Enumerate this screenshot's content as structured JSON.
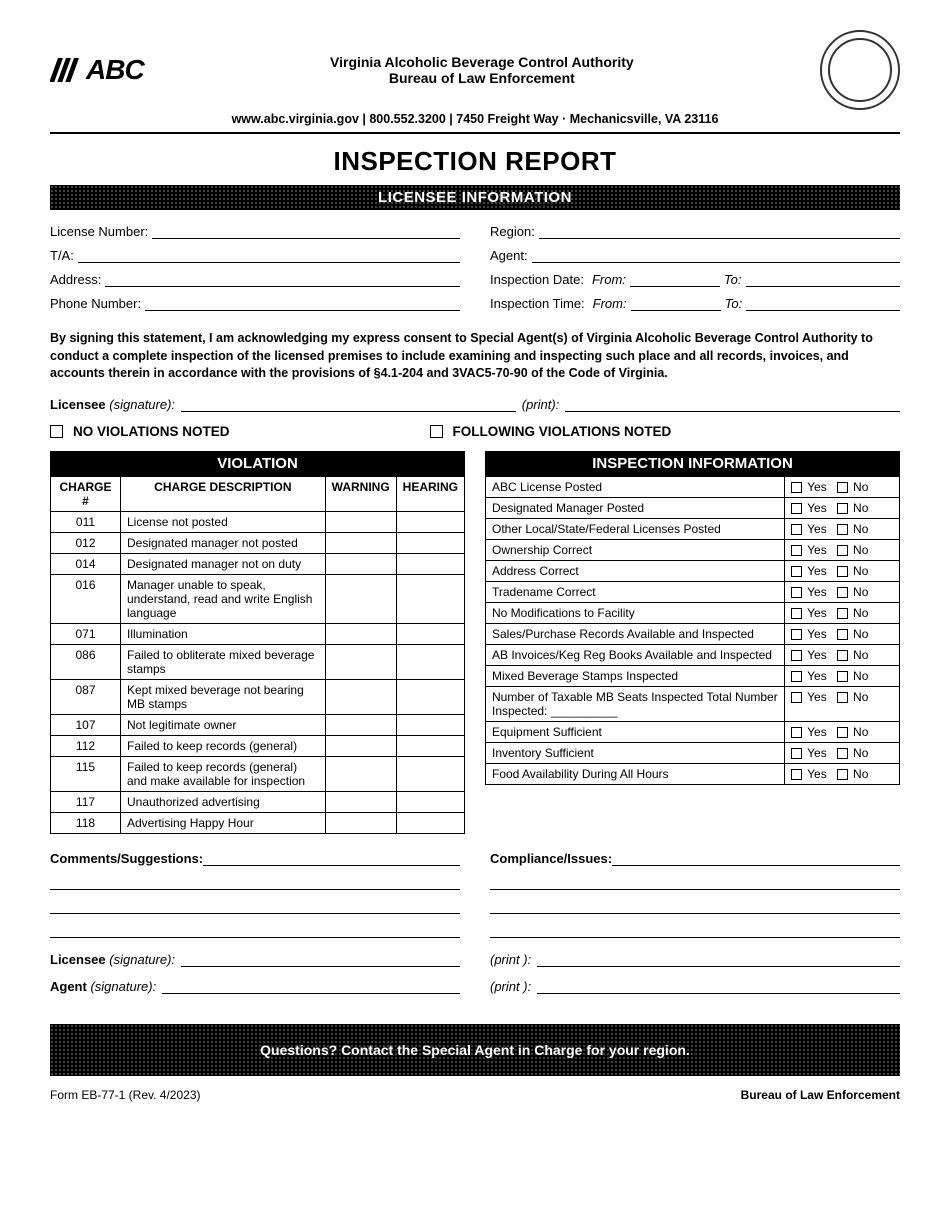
{
  "header": {
    "authority": "Virginia Alcoholic Beverage Control Authority",
    "bureau": "Bureau of Law Enforcement",
    "contact": "www.abc.virginia.gov  |  800.552.3200  |  7450 Freight Way · Mechanicsville, VA 23116",
    "logo_text": "ABC"
  },
  "title": "INSPECTION REPORT",
  "sections": {
    "licensee_info": "LICENSEE INFORMATION",
    "violation": "VIOLATION",
    "inspection_info": "INSPECTION INFORMATION"
  },
  "fields_left": {
    "license_number": "License Number:",
    "ta": "T/A:",
    "address": "Address:",
    "phone": "Phone Number:"
  },
  "fields_right": {
    "region": "Region:",
    "agent": "Agent:",
    "insp_date": "Inspection Date:",
    "insp_time": "Inspection Time:",
    "from": "From:",
    "to": "To:"
  },
  "consent": "By signing this statement, I am acknowledging my express consent to Special Agent(s) of Virginia Alcoholic Beverage Control Authority to conduct a complete inspection of the licensed premises to include examining and inspecting such place and all records, invoices, and accounts therein in accordance with the provisions of §4.1-204 and 3VAC5-70-90 of the Code of Virginia.",
  "sig1": {
    "label": "Licensee",
    "hint": "(signature):",
    "print": "(print):"
  },
  "cb": {
    "no_viol": "NO VIOLATIONS NOTED",
    "following": "FOLLOWING VIOLATIONS NOTED"
  },
  "viol_cols": {
    "charge": "CHARGE #",
    "desc": "CHARGE DESCRIPTION",
    "warn": "WARNING",
    "hear": "HEARING"
  },
  "violations": [
    {
      "n": "011",
      "d": "License not posted"
    },
    {
      "n": "012",
      "d": "Designated manager not posted"
    },
    {
      "n": "014",
      "d": "Designated manager not on duty"
    },
    {
      "n": "016",
      "d": "Manager unable to speak, understand, read and write English language"
    },
    {
      "n": "071",
      "d": "Illumination"
    },
    {
      "n": "086",
      "d": "Failed to obliterate mixed beverage stamps"
    },
    {
      "n": "087",
      "d": "Kept mixed beverage not bearing MB stamps"
    },
    {
      "n": "107",
      "d": "Not legitimate owner"
    },
    {
      "n": "112",
      "d": "Failed to keep records (general)"
    },
    {
      "n": "115",
      "d": "Failed to keep records (general) and make available for inspection"
    },
    {
      "n": "117",
      "d": "Unauthorized advertising"
    },
    {
      "n": "118",
      "d": "Advertising Happy Hour"
    }
  ],
  "insp_items": [
    "ABC License Posted",
    "Designated Manager Posted",
    "Other Local/State/Federal Licenses Posted",
    "Ownership Correct",
    "Address Correct",
    "Tradename Correct",
    "No Modifications to Facility",
    "Sales/Purchase Records Available and Inspected",
    "AB Invoices/Keg Reg Books Available and Inspected",
    "Mixed Beverage Stamps Inspected",
    "Number of Taxable MB Seats Inspected Total Number Inspected: __________",
    "Equipment Sufficient",
    "Inventory Sufficient",
    "Food Availability During All Hours"
  ],
  "yn": {
    "yes": "Yes",
    "no": "No"
  },
  "comments": {
    "left": "Comments/Suggestions:",
    "right": "Compliance/Issues:"
  },
  "sig2": {
    "licensee": "Licensee",
    "agent": "Agent",
    "sig": "(signature):",
    "print": "(print ):"
  },
  "footer_q": "Questions? Contact the Special Agent in Charge for your region.",
  "form_meta": {
    "left": "Form EB-77-1 (Rev. 4/2023)",
    "right": "Bureau of Law Enforcement"
  }
}
